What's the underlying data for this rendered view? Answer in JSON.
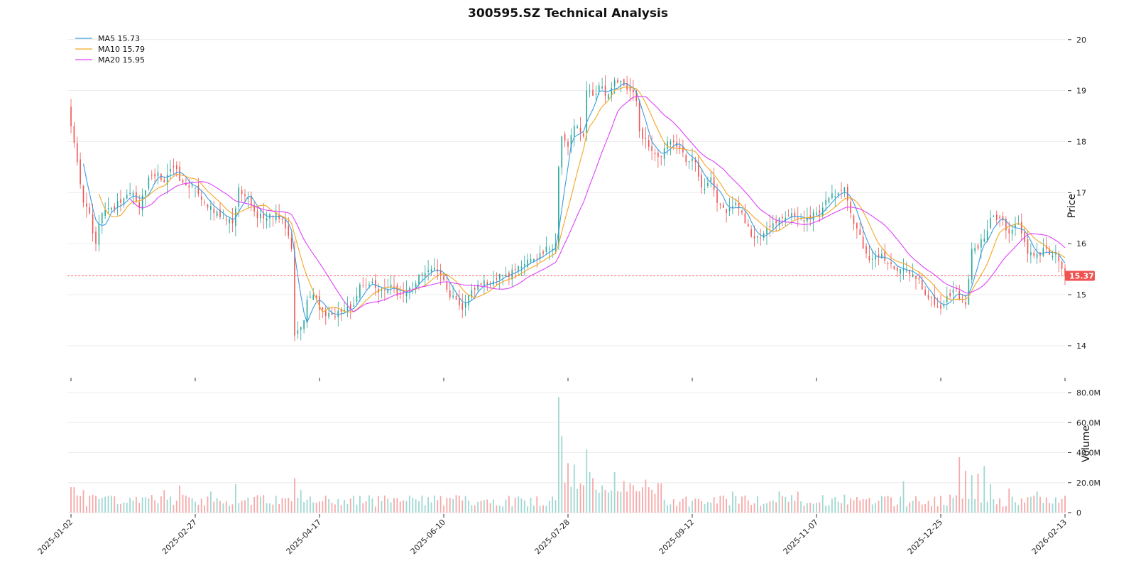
{
  "chart_data": {
    "type": "candlestick",
    "title": "300595.SZ Technical Analysis",
    "price_panel": {
      "ylabel": "Price",
      "ylim": [
        13.4,
        20.15
      ],
      "yticks": [
        "14",
        "15",
        "16",
        "17",
        "18",
        "19",
        "20"
      ],
      "last_price": 15.37,
      "last_price_label": "15.37",
      "grid": true
    },
    "volume_panel": {
      "ylabel": "Volume",
      "ylim": [
        0,
        80
      ],
      "yticks": [
        "0",
        "20.0M",
        "40.0M",
        "60.0M",
        "80.0M"
      ],
      "grid": true
    },
    "x_axis": {
      "tick_labels": [
        "2025-01-02",
        "2025-02-27",
        "2025-04-17",
        "2025-06-10",
        "2025-07-28",
        "2025-09-12",
        "2025-11-07",
        "2025-12-25",
        "2026-02-13"
      ],
      "tick_positions": [
        0,
        40,
        80,
        120,
        160,
        200,
        240,
        280,
        320
      ]
    },
    "legend": {
      "placement": "top-left",
      "entries": [
        {
          "label": "MA5 15.73",
          "color": "#3a9ee0"
        },
        {
          "label": "MA10 15.79",
          "color": "#f5a623"
        },
        {
          "label": "MA20 15.95",
          "color": "#e040fb"
        }
      ]
    },
    "colors": {
      "up": "#26a69a",
      "down": "#ef5350",
      "up_volume": "#9fd8d2",
      "down_volume": "#f6a9a8",
      "last_price": "#ef5350"
    },
    "n_days": 321,
    "close_anchors": [
      [
        0,
        18.3
      ],
      [
        2,
        17.6
      ],
      [
        4,
        16.8
      ],
      [
        6,
        16.6
      ],
      [
        7,
        16.2
      ],
      [
        8,
        16.0
      ],
      [
        10,
        16.6
      ],
      [
        13,
        16.7
      ],
      [
        16,
        16.8
      ],
      [
        20,
        17.0
      ],
      [
        22,
        16.7
      ],
      [
        25,
        17.3
      ],
      [
        28,
        17.4
      ],
      [
        30,
        17.2
      ],
      [
        33,
        17.5
      ],
      [
        36,
        17.2
      ],
      [
        38,
        17.1
      ],
      [
        40,
        17.1
      ],
      [
        43,
        16.8
      ],
      [
        46,
        16.6
      ],
      [
        49,
        16.5
      ],
      [
        52,
        16.4
      ],
      [
        54,
        17.1
      ],
      [
        57,
        16.9
      ],
      [
        60,
        16.5
      ],
      [
        63,
        16.5
      ],
      [
        66,
        16.6
      ],
      [
        69,
        16.3
      ],
      [
        71,
        15.9
      ],
      [
        72,
        14.2
      ],
      [
        73,
        14.3
      ],
      [
        75,
        14.5
      ],
      [
        76,
        14.9
      ],
      [
        78,
        15.0
      ],
      [
        80,
        14.7
      ],
      [
        84,
        14.6
      ],
      [
        88,
        14.7
      ],
      [
        91,
        14.8
      ],
      [
        93,
        15.2
      ],
      [
        96,
        15.2
      ],
      [
        100,
        15.1
      ],
      [
        103,
        15.2
      ],
      [
        106,
        15.0
      ],
      [
        110,
        15.2
      ],
      [
        113,
        15.4
      ],
      [
        116,
        15.5
      ],
      [
        119,
        15.4
      ],
      [
        121,
        15.1
      ],
      [
        124,
        14.9
      ],
      [
        126,
        14.7
      ],
      [
        128,
        15.0
      ],
      [
        131,
        15.2
      ],
      [
        134,
        15.2
      ],
      [
        137,
        15.3
      ],
      [
        140,
        15.4
      ],
      [
        143,
        15.5
      ],
      [
        146,
        15.6
      ],
      [
        149,
        15.7
      ],
      [
        152,
        15.8
      ],
      [
        156,
        16.0
      ],
      [
        157,
        17.5
      ],
      [
        158,
        18.1
      ],
      [
        160,
        17.9
      ],
      [
        162,
        18.3
      ],
      [
        165,
        18.1
      ],
      [
        166,
        19.0
      ],
      [
        168,
        18.9
      ],
      [
        170,
        19.1
      ],
      [
        172,
        18.9
      ],
      [
        175,
        19.2
      ],
      [
        178,
        19.1
      ],
      [
        180,
        19.0
      ],
      [
        182,
        18.8
      ],
      [
        183,
        18.2
      ],
      [
        186,
        17.9
      ],
      [
        189,
        17.7
      ],
      [
        192,
        18.0
      ],
      [
        195,
        17.9
      ],
      [
        198,
        17.6
      ],
      [
        201,
        17.6
      ],
      [
        203,
        17.1
      ],
      [
        206,
        17.3
      ],
      [
        208,
        16.8
      ],
      [
        211,
        16.6
      ],
      [
        214,
        16.8
      ],
      [
        217,
        16.4
      ],
      [
        220,
        16.1
      ],
      [
        223,
        16.2
      ],
      [
        226,
        16.4
      ],
      [
        229,
        16.5
      ],
      [
        232,
        16.6
      ],
      [
        235,
        16.5
      ],
      [
        238,
        16.5
      ],
      [
        241,
        16.6
      ],
      [
        244,
        16.9
      ],
      [
        247,
        17.0
      ],
      [
        249,
        17.1
      ],
      [
        251,
        16.6
      ],
      [
        253,
        16.3
      ],
      [
        255,
        15.9
      ],
      [
        258,
        15.7
      ],
      [
        261,
        15.8
      ],
      [
        264,
        15.6
      ],
      [
        267,
        15.5
      ],
      [
        270,
        15.4
      ],
      [
        273,
        15.3
      ],
      [
        275,
        15.0
      ],
      [
        278,
        14.8
      ],
      [
        281,
        14.8
      ],
      [
        284,
        15.1
      ],
      [
        287,
        14.9
      ],
      [
        288,
        14.8
      ],
      [
        290,
        15.9
      ],
      [
        292,
        15.9
      ],
      [
        294,
        16.1
      ],
      [
        296,
        16.5
      ],
      [
        299,
        16.5
      ],
      [
        302,
        16.2
      ],
      [
        305,
        16.4
      ],
      [
        308,
        15.8
      ],
      [
        311,
        15.8
      ],
      [
        314,
        15.9
      ],
      [
        317,
        15.8
      ],
      [
        320,
        15.37
      ]
    ],
    "volume_spikes": [
      [
        0,
        17
      ],
      [
        1,
        17
      ],
      [
        4,
        15
      ],
      [
        19,
        10
      ],
      [
        30,
        15
      ],
      [
        35,
        18
      ],
      [
        45,
        14
      ],
      [
        53,
        19
      ],
      [
        72,
        23
      ],
      [
        74,
        15
      ],
      [
        157,
        77
      ],
      [
        158,
        51
      ],
      [
        160,
        33
      ],
      [
        162,
        32
      ],
      [
        166,
        42
      ],
      [
        167,
        27
      ],
      [
        168,
        23
      ],
      [
        175,
        27
      ],
      [
        178,
        21
      ],
      [
        185,
        22
      ],
      [
        213,
        14
      ],
      [
        228,
        14
      ],
      [
        234,
        14
      ],
      [
        249,
        12
      ],
      [
        268,
        21
      ],
      [
        286,
        37
      ],
      [
        288,
        28
      ],
      [
        290,
        25
      ],
      [
        292,
        26
      ],
      [
        294,
        31
      ],
      [
        296,
        19
      ],
      [
        302,
        16
      ],
      [
        311,
        14
      ]
    ]
  }
}
